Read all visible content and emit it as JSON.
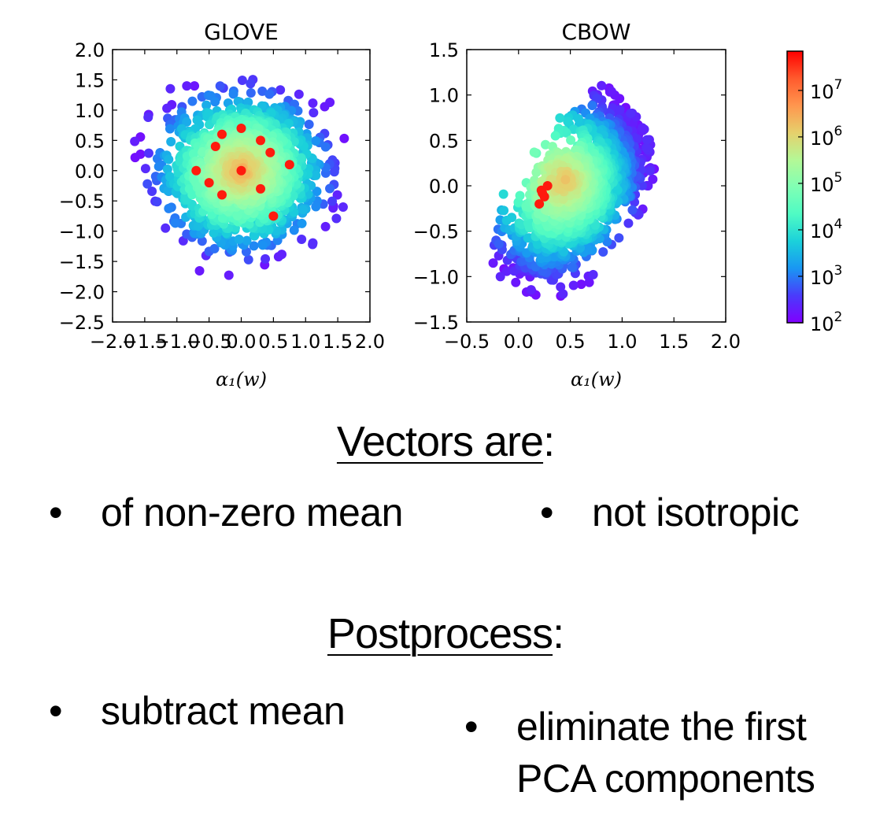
{
  "chart_data": [
    {
      "type": "scatter",
      "title": "GLOVE",
      "xlabel": "α₁(w)",
      "ylabel": "",
      "xlim": [
        -2.0,
        2.0
      ],
      "ylim": [
        -2.5,
        2.0
      ],
      "xticks": [
        "−2.0",
        "−1.5",
        "−1.0",
        "−0.5",
        "0.0",
        "0.5",
        "1.0",
        "1.5",
        "2.0"
      ],
      "xtick_values": [
        -2.0,
        -1.5,
        -1.0,
        -0.5,
        0.0,
        0.5,
        1.0,
        1.5,
        2.0
      ],
      "yticks": [
        "−2.5",
        "−2.0",
        "−1.5",
        "−1.0",
        "−0.5",
        "0.0",
        "0.5",
        "1.0",
        "1.5",
        "2.0"
      ],
      "ytick_values": [
        -2.5,
        -2.0,
        -1.5,
        -1.0,
        -0.5,
        0.0,
        0.5,
        1.0,
        1.5,
        2.0
      ],
      "distribution": "roughly isotropic cloud centered near (0, 0), dense core with high counts",
      "center": [
        0.0,
        0.0
      ],
      "spread": [
        0.55,
        0.55
      ],
      "correlation": 0.0,
      "high_count_points": [
        [
          0.0,
          0.7
        ],
        [
          -0.3,
          0.6
        ],
        [
          0.3,
          0.5
        ],
        [
          -0.4,
          0.4
        ],
        [
          0.45,
          0.3
        ],
        [
          -0.7,
          0.0
        ],
        [
          0.0,
          0.0
        ],
        [
          0.75,
          0.1
        ],
        [
          -0.5,
          -0.2
        ],
        [
          0.3,
          -0.3
        ],
        [
          -0.3,
          -0.4
        ],
        [
          0.5,
          -0.75
        ]
      ]
    },
    {
      "type": "scatter",
      "title": "CBOW",
      "xlabel": "α₁(w)",
      "ylabel": "",
      "xlim": [
        -0.5,
        2.0
      ],
      "ylim": [
        -1.5,
        1.5
      ],
      "xticks": [
        "−0.5",
        "0.0",
        "0.5",
        "1.0",
        "1.5",
        "2.0"
      ],
      "xtick_values": [
        -0.5,
        0.0,
        0.5,
        1.0,
        1.5,
        2.0
      ],
      "yticks": [
        "−1.5",
        "−1.0",
        "−0.5",
        "0.0",
        "0.5",
        "1.0",
        "1.5"
      ],
      "ytick_values": [
        -1.5,
        -1.0,
        -0.5,
        0.0,
        0.5,
        1.0,
        1.5
      ],
      "distribution": "elongated diagonal cloud, non-zero mean, densest near (0.25, -0.1)",
      "center": [
        0.65,
        0.0
      ],
      "spread": [
        0.35,
        0.5
      ],
      "correlation": 0.7,
      "high_count_points": [
        [
          0.22,
          -0.05
        ],
        [
          0.25,
          -0.12
        ],
        [
          0.2,
          -0.2
        ],
        [
          0.28,
          0.0
        ],
        [
          0.23,
          -0.08
        ]
      ]
    }
  ],
  "colorbar": {
    "scale": "log",
    "range": [
      100,
      70000000
    ],
    "ticks": [
      "10",
      "10",
      "10",
      "10",
      "10",
      "10"
    ],
    "exponents": [
      "2",
      "3",
      "4",
      "5",
      "6",
      "7"
    ],
    "colormap": [
      "#8000ff",
      "#4a3bfb",
      "#1996f3",
      "#1bd1da",
      "#4ffbc4",
      "#80ffb4",
      "#b4f896",
      "#e6d06c",
      "#ff964e",
      "#ff5a2d",
      "#ff0000"
    ]
  },
  "text": {
    "heading1": "Vectors are",
    "heading1_suffix": ":",
    "bullets1": [
      "of non-zero mean",
      "not isotropic"
    ],
    "heading2": "Postprocess",
    "heading2_suffix": ":",
    "bullets2": [
      "subtract mean",
      "eliminate the first",
      "PCA components"
    ],
    "bullet_glyph": "•"
  }
}
